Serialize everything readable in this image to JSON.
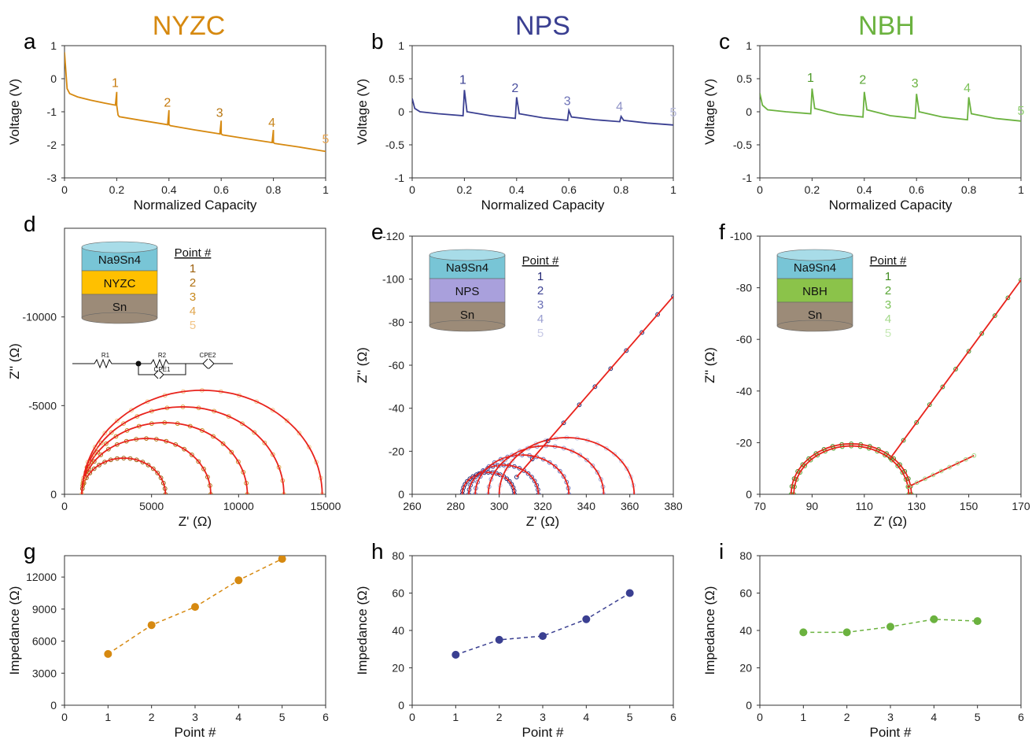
{
  "columns": [
    {
      "title": "NYZC",
      "color": "#D68910"
    },
    {
      "title": "NPS",
      "color": "#3A3F91"
    },
    {
      "title": "NBH",
      "color": "#6BB23F"
    }
  ],
  "fit_color": "#E8231C",
  "chart_data": [
    {
      "id": "a",
      "panel_label": "a",
      "type": "line",
      "xlabel": "Normalized Capacity",
      "ylabel": "Voltage (V)",
      "xlim": [
        0,
        1
      ],
      "ylim": [
        -3,
        1
      ],
      "xticks": [
        "0",
        "0.2",
        "0.4",
        "0.6",
        "0.8",
        "1"
      ],
      "yticks": [
        "-3",
        "-2",
        "-1",
        "0",
        "1"
      ],
      "color": "#D68910",
      "series": [
        {
          "x": [
            0,
            0.01,
            0.02,
            0.05,
            0.1,
            0.15,
            0.195,
            0.2,
            0.2,
            0.205,
            0.21,
            0.3,
            0.395,
            0.4,
            0.4,
            0.405,
            0.5,
            0.595,
            0.6,
            0.6,
            0.605,
            0.7,
            0.795,
            0.8,
            0.8,
            0.805,
            0.9,
            1.0
          ],
          "y": [
            0.8,
            -0.3,
            -0.45,
            -0.55,
            -0.65,
            -0.73,
            -0.8,
            -0.4,
            -0.8,
            -1.1,
            -1.15,
            -1.27,
            -1.39,
            -0.95,
            -1.39,
            -1.42,
            -1.55,
            -1.67,
            -1.27,
            -1.67,
            -1.7,
            -1.82,
            -1.93,
            -1.55,
            -1.93,
            -1.96,
            -2.07,
            -2.2
          ]
        }
      ],
      "annotations": [
        {
          "text": "1",
          "x": 0.2,
          "y": -0.25
        },
        {
          "text": "2",
          "x": 0.4,
          "y": -0.85
        },
        {
          "text": "3",
          "x": 0.6,
          "y": -1.15
        },
        {
          "text": "4",
          "x": 0.8,
          "y": -1.45
        },
        {
          "text": "5",
          "x": 1.0,
          "y": -1.95
        }
      ]
    },
    {
      "id": "b",
      "panel_label": "b",
      "type": "line",
      "xlabel": "Normalized Capacity",
      "ylabel": "Voltage (V)",
      "xlim": [
        0,
        1
      ],
      "ylim": [
        -1,
        1
      ],
      "xticks": [
        "0",
        "0.2",
        "0.4",
        "0.6",
        "0.8",
        "1"
      ],
      "yticks": [
        "-1",
        "-0.5",
        "0",
        "0.5",
        "1"
      ],
      "color": "#3A3F91",
      "series": [
        {
          "x": [
            0,
            0.01,
            0.03,
            0.1,
            0.195,
            0.2,
            0.2,
            0.21,
            0.3,
            0.395,
            0.4,
            0.4,
            0.41,
            0.5,
            0.595,
            0.6,
            0.6,
            0.61,
            0.7,
            0.795,
            0.8,
            0.8,
            0.81,
            0.9,
            1.0
          ],
          "y": [
            0.2,
            0.05,
            0.0,
            -0.03,
            -0.06,
            0.33,
            0.33,
            0.0,
            -0.06,
            -0.1,
            0.22,
            0.22,
            -0.03,
            -0.09,
            -0.13,
            0.02,
            0.02,
            -0.08,
            -0.12,
            -0.15,
            -0.07,
            -0.07,
            -0.13,
            -0.17,
            -0.2
          ]
        }
      ],
      "annotations": [
        {
          "text": "1",
          "x": 0.2,
          "y": 0.42
        },
        {
          "text": "2",
          "x": 0.4,
          "y": 0.3
        },
        {
          "text": "3",
          "x": 0.6,
          "y": 0.1
        },
        {
          "text": "4",
          "x": 0.8,
          "y": 0.02
        },
        {
          "text": "5",
          "x": 1.0,
          "y": -0.07
        }
      ]
    },
    {
      "id": "c",
      "panel_label": "c",
      "type": "line",
      "xlabel": "Normalized Capacity",
      "ylabel": "Voltage (V)",
      "xlim": [
        0,
        1
      ],
      "ylim": [
        -1,
        1
      ],
      "xticks": [
        "0",
        "0.2",
        "0.4",
        "0.6",
        "0.8",
        "1"
      ],
      "yticks": [
        "-1",
        "-0.5",
        "0",
        "0.5",
        "1"
      ],
      "color": "#6BB23F",
      "series": [
        {
          "x": [
            0,
            0.01,
            0.03,
            0.1,
            0.195,
            0.2,
            0.2,
            0.21,
            0.3,
            0.395,
            0.4,
            0.4,
            0.41,
            0.5,
            0.595,
            0.6,
            0.6,
            0.61,
            0.7,
            0.795,
            0.8,
            0.8,
            0.81,
            0.9,
            1.0
          ],
          "y": [
            0.28,
            0.1,
            0.03,
            0.0,
            -0.03,
            0.35,
            0.35,
            0.05,
            -0.04,
            -0.08,
            0.3,
            0.3,
            0.03,
            -0.06,
            -0.1,
            0.27,
            0.27,
            0.0,
            -0.08,
            -0.12,
            0.22,
            0.22,
            -0.03,
            -0.1,
            -0.14
          ]
        }
      ],
      "annotations": [
        {
          "text": "1",
          "x": 0.2,
          "y": 0.45
        },
        {
          "text": "2",
          "x": 0.4,
          "y": 0.42
        },
        {
          "text": "3",
          "x": 0.6,
          "y": 0.37
        },
        {
          "text": "4",
          "x": 0.8,
          "y": 0.3
        },
        {
          "text": "5",
          "x": 1.0,
          "y": -0.05
        }
      ]
    },
    {
      "id": "d",
      "panel_label": "d",
      "type": "scatter",
      "xlabel": "Z' (Ω)",
      "ylabel": "Z'' (Ω)",
      "xlim": [
        0,
        15000
      ],
      "ylim": [
        0,
        -15000
      ],
      "xticks": [
        "0",
        "5000",
        "10000",
        "15000"
      ],
      "yticks": [
        {
          "label": "0",
          "value": 0
        },
        {
          "label": "-5000",
          "value": -5000
        },
        {
          "label": "-10000",
          "value": -10000
        }
      ],
      "color": "#D68910",
      "arcs": [
        {
          "start": 1000,
          "end": 5800
        },
        {
          "start": 1000,
          "end": 8400
        },
        {
          "start": 1000,
          "end": 10500
        },
        {
          "start": 1000,
          "end": 12600
        },
        {
          "start": 1000,
          "end": 14800
        }
      ],
      "point_colors": [
        "#9C5F0C",
        "#B07010",
        "#C88A1E",
        "#E0A54C",
        "#F2C486"
      ],
      "inset": {
        "layers": [
          "Na9Sn4",
          "NYZC",
          "Sn"
        ],
        "layer_colors": [
          "#78C5D6",
          "#FFC000",
          "#9C8B78"
        ]
      },
      "legend_title": "Point #",
      "legend_entries": [
        "1",
        "2",
        "3",
        "4",
        "5"
      ],
      "circuit": {
        "labels": [
          "R1",
          "R2",
          "CPE2",
          "CPE1"
        ]
      }
    },
    {
      "id": "e",
      "panel_label": "e",
      "type": "scatter",
      "xlabel": "Z' (Ω)",
      "ylabel": "Z'' (Ω)",
      "xlim": [
        260,
        380
      ],
      "ylim": [
        0,
        -120
      ],
      "xticks": [
        "260",
        "280",
        "300",
        "320",
        "340",
        "360",
        "380"
      ],
      "yticks": [
        {
          "label": "0",
          "value": 0
        },
        {
          "label": "-20",
          "value": -20
        },
        {
          "label": "-40",
          "value": -40
        },
        {
          "label": "-60",
          "value": -60
        },
        {
          "label": "-80",
          "value": -80
        },
        {
          "label": "-100",
          "value": -100
        },
        {
          "label": "-120",
          "value": -120
        }
      ],
      "color": "#3A3F91",
      "arcs": [
        {
          "start": 283,
          "end": 307
        },
        {
          "start": 286,
          "end": 318
        },
        {
          "start": 289,
          "end": 332
        },
        {
          "start": 295,
          "end": 348
        },
        {
          "start": 300,
          "end": 362
        }
      ],
      "tail": {
        "x": [
          308,
          380
        ],
        "y": [
          -8,
          -92
        ]
      },
      "point_colors": [
        "#1F2472",
        "#3A3F91",
        "#6A6FB5",
        "#9A9ED0",
        "#C8CAE6"
      ],
      "inset": {
        "layers": [
          "Na9Sn4",
          "NPS",
          "Sn"
        ],
        "layer_colors": [
          "#78C5D6",
          "#A9A0DC",
          "#9C8B78"
        ]
      },
      "legend_title": "Point #",
      "legend_entries": [
        "1",
        "2",
        "3",
        "4",
        "5"
      ]
    },
    {
      "id": "f",
      "panel_label": "f",
      "type": "scatter",
      "xlabel": "Z' (Ω)",
      "ylabel": "Z'' (Ω)",
      "xlim": [
        70,
        170
      ],
      "ylim": [
        0,
        -100
      ],
      "xticks": [
        "70",
        "90",
        "110",
        "130",
        "150",
        "170"
      ],
      "yticks": [
        {
          "label": "0",
          "value": 0
        },
        {
          "label": "-20",
          "value": -20
        },
        {
          "label": "-40",
          "value": -40
        },
        {
          "label": "-60",
          "value": -60
        },
        {
          "label": "-80",
          "value": -80
        },
        {
          "label": "-100",
          "value": -100
        }
      ],
      "color": "#6BB23F",
      "arcs": [
        {
          "start": 82,
          "end": 128
        },
        {
          "start": 83,
          "end": 127
        }
      ],
      "tail": {
        "x": [
          120,
          170
        ],
        "y": [
          -14,
          -83
        ]
      },
      "tail2": {
        "x": [
          127,
          152
        ],
        "y": [
          -3,
          -15
        ]
      },
      "point_colors": [
        "#3E8A1E",
        "#5AA636",
        "#7DC35A",
        "#A3D88A",
        "#C7E9B6"
      ],
      "inset": {
        "layers": [
          "Na9Sn4",
          "NBH",
          "Sn"
        ],
        "layer_colors": [
          "#78C5D6",
          "#8BC34A",
          "#9C8B78"
        ]
      },
      "legend_title": "Point #",
      "legend_entries": [
        "1",
        "2",
        "3",
        "4",
        "5"
      ]
    },
    {
      "id": "g",
      "panel_label": "g",
      "type": "line",
      "xlabel": "Point #",
      "ylabel": "Impedance (Ω)",
      "xlim": [
        0,
        6
      ],
      "ylim": [
        0,
        14000
      ],
      "xticks": [
        "0",
        "1",
        "2",
        "3",
        "4",
        "5",
        "6"
      ],
      "yticks": [
        {
          "label": "0",
          "value": 0
        },
        {
          "label": "3000",
          "value": 3000
        },
        {
          "label": "6000",
          "value": 6000
        },
        {
          "label": "9000",
          "value": 9000
        },
        {
          "label": "12000",
          "value": 12000
        }
      ],
      "color": "#D68910",
      "series": [
        {
          "x": [
            1,
            2,
            3,
            4,
            5
          ],
          "y": [
            4800,
            7500,
            9200,
            11700,
            13700
          ]
        }
      ]
    },
    {
      "id": "h",
      "panel_label": "h",
      "type": "line",
      "xlabel": "Point #",
      "ylabel": "Impedance (Ω)",
      "xlim": [
        0,
        6
      ],
      "ylim": [
        0,
        80
      ],
      "xticks": [
        "0",
        "1",
        "2",
        "3",
        "4",
        "5",
        "6"
      ],
      "yticks": [
        {
          "label": "0",
          "value": 0
        },
        {
          "label": "20",
          "value": 20
        },
        {
          "label": "40",
          "value": 40
        },
        {
          "label": "60",
          "value": 60
        },
        {
          "label": "80",
          "value": 80
        }
      ],
      "color": "#3A3F91",
      "series": [
        {
          "x": [
            1,
            2,
            3,
            4,
            5
          ],
          "y": [
            27,
            35,
            37,
            46,
            60
          ]
        }
      ]
    },
    {
      "id": "i",
      "panel_label": "i",
      "type": "line",
      "xlabel": "Point #",
      "ylabel": "Impedance (Ω)",
      "xlim": [
        0,
        6
      ],
      "ylim": [
        0,
        80
      ],
      "xticks": [
        "0",
        "1",
        "2",
        "3",
        "4",
        "5",
        "6"
      ],
      "yticks": [
        {
          "label": "0",
          "value": 0
        },
        {
          "label": "20",
          "value": 20
        },
        {
          "label": "40",
          "value": 40
        },
        {
          "label": "60",
          "value": 60
        },
        {
          "label": "80",
          "value": 80
        }
      ],
      "color": "#6BB23F",
      "series": [
        {
          "x": [
            1,
            2,
            3,
            4,
            5
          ],
          "y": [
            39,
            39,
            42,
            46,
            45
          ]
        }
      ]
    }
  ]
}
